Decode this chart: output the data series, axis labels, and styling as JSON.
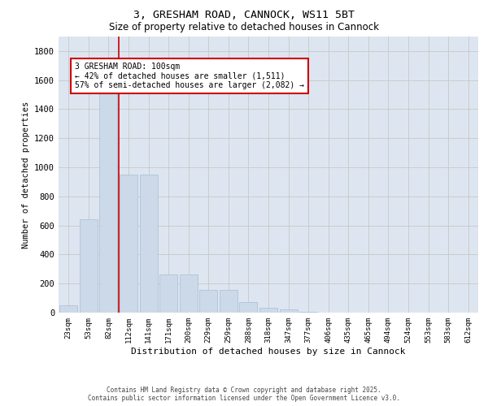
{
  "title1": "3, GRESHAM ROAD, CANNOCK, WS11 5BT",
  "title2": "Size of property relative to detached houses in Cannock",
  "xlabel": "Distribution of detached houses by size in Cannock",
  "ylabel": "Number of detached properties",
  "categories": [
    "23sqm",
    "53sqm",
    "82sqm",
    "112sqm",
    "141sqm",
    "171sqm",
    "200sqm",
    "229sqm",
    "259sqm",
    "288sqm",
    "318sqm",
    "347sqm",
    "377sqm",
    "406sqm",
    "435sqm",
    "465sqm",
    "494sqm",
    "524sqm",
    "553sqm",
    "583sqm",
    "612sqm"
  ],
  "values": [
    50,
    645,
    1510,
    950,
    950,
    265,
    265,
    155,
    155,
    70,
    35,
    20,
    5,
    2,
    1,
    1,
    0,
    0,
    0,
    0,
    0
  ],
  "bar_color": "#ccd9e8",
  "bar_edge_color": "#aabdd4",
  "grid_color": "#c8c8c8",
  "bg_color": "#dde6f0",
  "vline_color": "#cc0000",
  "annotation_text": "3 GRESHAM ROAD: 100sqm\n← 42% of detached houses are smaller (1,511)\n57% of semi-detached houses are larger (2,082) →",
  "annotation_box_edge_color": "#cc0000",
  "ylim": [
    0,
    1900
  ],
  "yticks": [
    0,
    200,
    400,
    600,
    800,
    1000,
    1200,
    1400,
    1600,
    1800
  ],
  "footer_line1": "Contains HM Land Registry data © Crown copyright and database right 2025.",
  "footer_line2": "Contains public sector information licensed under the Open Government Licence v3.0."
}
